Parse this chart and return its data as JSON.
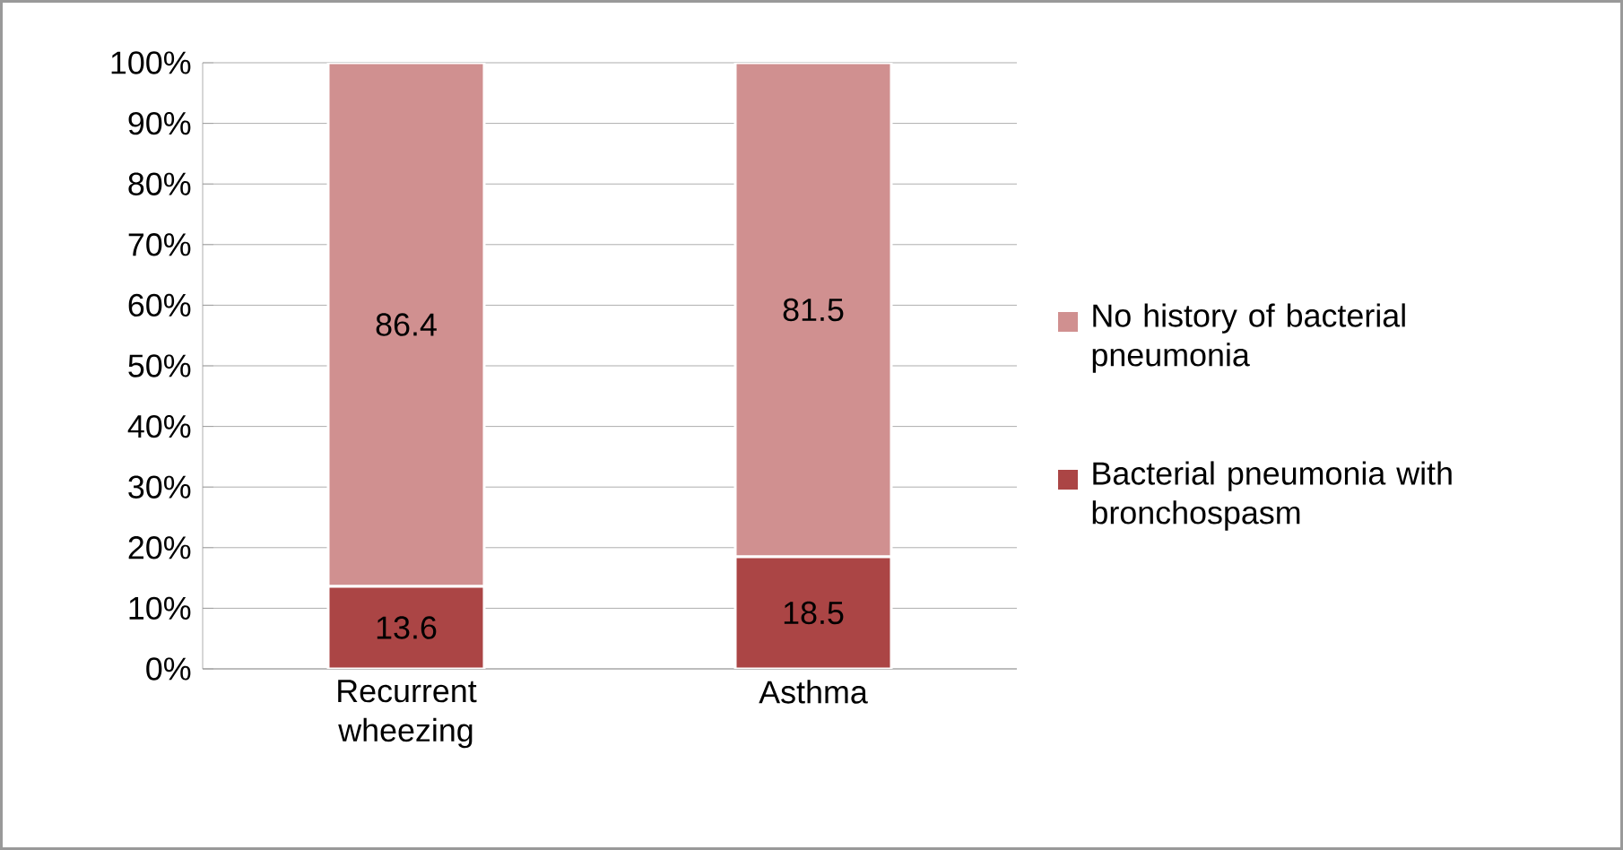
{
  "chart_data": {
    "type": "bar",
    "stacked": true,
    "categories": [
      "Recurrent wheezing",
      "Asthma"
    ],
    "series": [
      {
        "name": "Bacterial pneumonia with bronchospasm",
        "color": "#ab4545",
        "values": [
          13.6,
          18.5
        ]
      },
      {
        "name": "No history of bacterial pneumonia",
        "color": "#d09090",
        "values": [
          86.4,
          81.5
        ]
      }
    ],
    "ylim": [
      0,
      100
    ],
    "yticks": [
      {
        "value": 0,
        "label": "0%"
      },
      {
        "value": 10,
        "label": "10%"
      },
      {
        "value": 20,
        "label": "20%"
      },
      {
        "value": 30,
        "label": "30%"
      },
      {
        "value": 40,
        "label": "40%"
      },
      {
        "value": 50,
        "label": "50%"
      },
      {
        "value": 60,
        "label": "60%"
      },
      {
        "value": 70,
        "label": "70%"
      },
      {
        "value": 80,
        "label": "80%"
      },
      {
        "value": 90,
        "label": "90%"
      },
      {
        "value": 100,
        "label": "100%"
      }
    ],
    "grid": "y",
    "legend": "right",
    "data_labels": true
  }
}
